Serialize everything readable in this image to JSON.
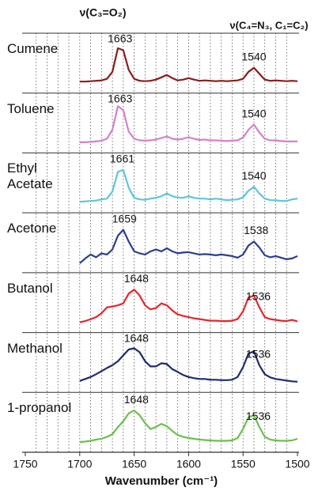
{
  "chart_data": {
    "type": "line",
    "annotations": [
      "ν(C₃=O₂)",
      "ν(C₄=N₃, C₁=C₂)"
    ],
    "x_label": "Wavenumber (cm⁻¹)",
    "xlim": [
      1750,
      1500
    ],
    "xticks": [
      1750,
      1700,
      1650,
      1600,
      1550,
      1500
    ],
    "xgrid": [
      1740,
      1730,
      1720,
      1710,
      1700,
      1690,
      1680,
      1670,
      1660,
      1650,
      1640,
      1630,
      1620,
      1610,
      1600,
      1590,
      1580,
      1570,
      1560,
      1550,
      1540,
      1530,
      1520,
      1510
    ],
    "grid": true,
    "ylim": [
      0,
      1
    ],
    "x": [
      1700,
      1695,
      1690,
      1685,
      1680,
      1675,
      1670,
      1665,
      1660,
      1655,
      1650,
      1645,
      1640,
      1635,
      1630,
      1625,
      1620,
      1615,
      1610,
      1605,
      1600,
      1595,
      1590,
      1585,
      1580,
      1575,
      1570,
      1565,
      1560,
      1555,
      1550,
      1545,
      1540,
      1535,
      1530,
      1525,
      1520,
      1515,
      1510,
      1505,
      1500
    ],
    "series": [
      {
        "name": "Cumene",
        "color": "#8b1c1c",
        "peaks": [
          1663,
          1540
        ],
        "values": [
          0.05,
          0.05,
          0.06,
          0.07,
          0.08,
          0.12,
          0.3,
          0.9,
          0.85,
          0.35,
          0.12,
          0.07,
          0.06,
          0.07,
          0.1,
          0.16,
          0.22,
          0.14,
          0.08,
          0.1,
          0.14,
          0.1,
          0.07,
          0.08,
          0.07,
          0.06,
          0.07,
          0.06,
          0.07,
          0.08,
          0.12,
          0.3,
          0.4,
          0.25,
          0.1,
          0.07,
          0.08,
          0.07,
          0.06,
          0.07,
          0.06
        ]
      },
      {
        "name": "Toluene",
        "color": "#d67fc9",
        "peaks": [
          1663,
          1540
        ],
        "values": [
          0.03,
          0.03,
          0.04,
          0.05,
          0.07,
          0.12,
          0.35,
          0.95,
          0.85,
          0.3,
          0.12,
          0.08,
          0.07,
          0.08,
          0.1,
          0.14,
          0.18,
          0.12,
          0.1,
          0.12,
          0.16,
          0.12,
          0.09,
          0.1,
          0.08,
          0.08,
          0.07,
          0.06,
          0.07,
          0.08,
          0.15,
          0.35,
          0.48,
          0.28,
          0.12,
          0.08,
          0.08,
          0.06,
          0.05,
          0.05,
          0.05
        ]
      },
      {
        "name": "Ethyl Acetate",
        "color": "#5cc6dc",
        "peaks": [
          1661,
          1540
        ],
        "values": [
          0.04,
          0.05,
          0.06,
          0.07,
          0.1,
          0.12,
          0.3,
          0.8,
          0.85,
          0.4,
          0.14,
          0.1,
          0.09,
          0.12,
          0.14,
          0.18,
          0.25,
          0.18,
          0.15,
          0.14,
          0.18,
          0.14,
          0.12,
          0.12,
          0.1,
          0.12,
          0.1,
          0.08,
          0.09,
          0.1,
          0.15,
          0.32,
          0.42,
          0.25,
          0.12,
          0.08,
          0.08,
          0.06,
          0.06,
          0.1,
          0.12
        ]
      },
      {
        "name": "Acetone",
        "color": "#2c3e90",
        "peaks": [
          1659,
          1538
        ],
        "values": [
          0.0,
          0.12,
          0.22,
          0.15,
          0.25,
          0.22,
          0.35,
          0.7,
          0.85,
          0.55,
          0.3,
          0.25,
          0.22,
          0.3,
          0.35,
          0.3,
          0.38,
          0.3,
          0.25,
          0.27,
          0.28,
          0.25,
          0.22,
          0.23,
          0.22,
          0.2,
          0.22,
          0.2,
          0.18,
          0.14,
          0.22,
          0.45,
          0.55,
          0.4,
          0.2,
          0.15,
          0.18,
          0.14,
          0.1,
          0.12,
          0.18
        ]
      },
      {
        "name": "Butanol",
        "color": "#e8252b",
        "peaks": [
          1648,
          1536
        ],
        "values": [
          0.02,
          0.05,
          0.1,
          0.15,
          0.25,
          0.4,
          0.42,
          0.45,
          0.5,
          0.75,
          0.85,
          0.7,
          0.45,
          0.35,
          0.38,
          0.5,
          0.45,
          0.32,
          0.22,
          0.18,
          0.15,
          0.12,
          0.1,
          0.08,
          0.06,
          0.06,
          0.05,
          0.05,
          0.06,
          0.1,
          0.3,
          0.65,
          0.7,
          0.4,
          0.15,
          0.1,
          0.08,
          0.06,
          0.05,
          0.08,
          0.04
        ]
      },
      {
        "name": "Methanol",
        "color": "#1f2a70",
        "peaks": [
          1648,
          1536
        ],
        "values": [
          0.05,
          0.1,
          0.15,
          0.22,
          0.3,
          0.38,
          0.45,
          0.55,
          0.7,
          0.85,
          0.88,
          0.78,
          0.55,
          0.42,
          0.42,
          0.5,
          0.48,
          0.35,
          0.28,
          0.2,
          0.15,
          0.12,
          0.1,
          0.1,
          0.08,
          0.08,
          0.07,
          0.07,
          0.08,
          0.15,
          0.4,
          0.75,
          0.8,
          0.45,
          0.22,
          0.14,
          0.1,
          0.08,
          0.06,
          0.04,
          0.03
        ]
      },
      {
        "name": "1-propanol",
        "color": "#6cc04a",
        "peaks": [
          1648,
          1536
        ],
        "values": [
          0.02,
          0.03,
          0.05,
          0.08,
          0.1,
          0.15,
          0.22,
          0.4,
          0.55,
          0.75,
          0.82,
          0.7,
          0.5,
          0.35,
          0.4,
          0.48,
          0.42,
          0.3,
          0.2,
          0.15,
          0.12,
          0.1,
          0.08,
          0.07,
          0.06,
          0.05,
          0.05,
          0.05,
          0.06,
          0.12,
          0.35,
          0.65,
          0.7,
          0.4,
          0.15,
          0.08,
          0.06,
          0.05,
          0.05,
          0.06,
          0.1
        ]
      }
    ]
  }
}
